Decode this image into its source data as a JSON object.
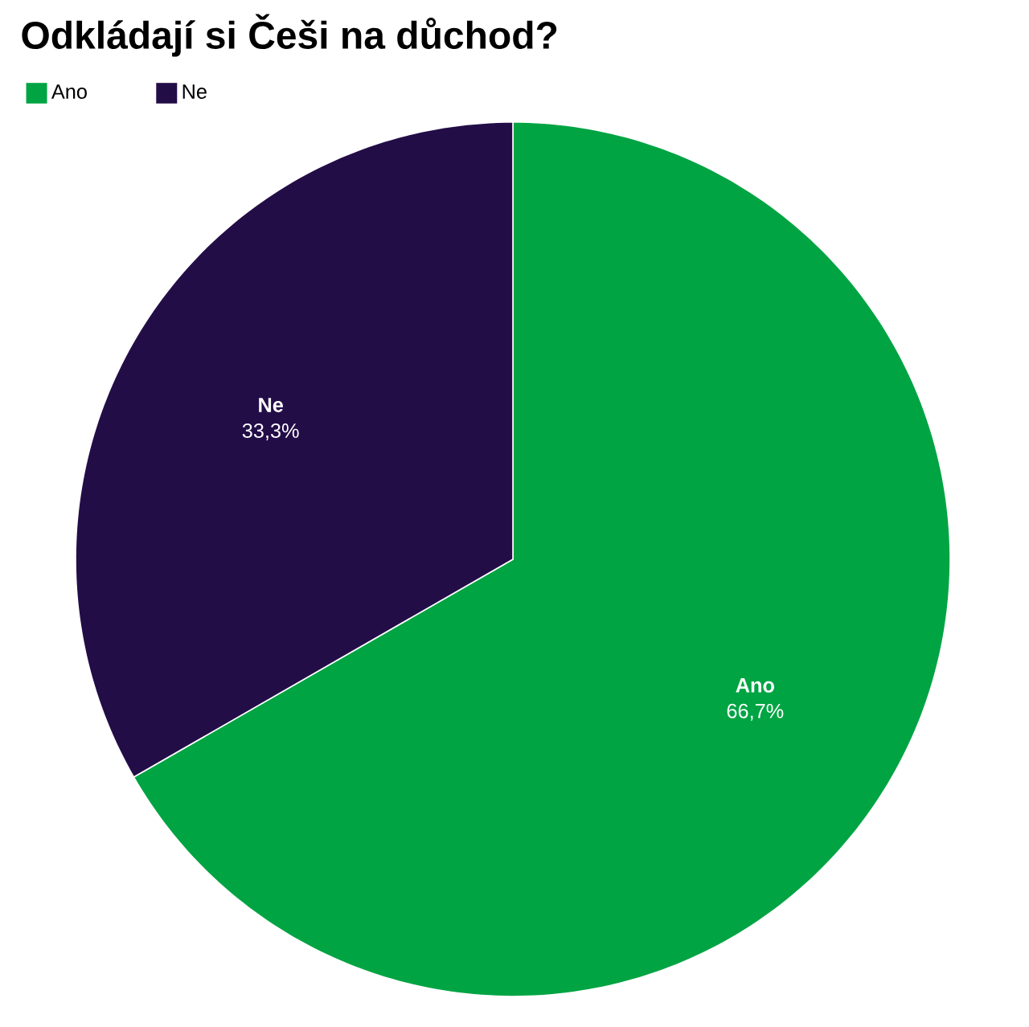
{
  "chart_data": {
    "type": "pie",
    "title": "Odkládají si Češi na důchod?",
    "categories": [
      "Ano",
      "Ne"
    ],
    "values": [
      66.7,
      33.3
    ],
    "colors": [
      "#00a443",
      "#230d47"
    ],
    "value_labels": [
      "66,7%",
      "33,3%"
    ],
    "legend": "top left"
  }
}
